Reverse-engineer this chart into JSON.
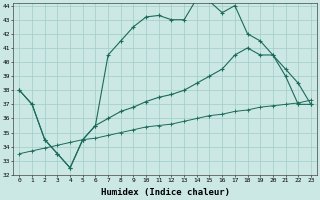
{
  "xlabel": "Humidex (Indice chaleur)",
  "bg_color": "#cce8e4",
  "line_color": "#1a6b5a",
  "grid_color": "#a0ccc8",
  "xmin": 0,
  "xmax": 23,
  "ymin": 32,
  "ymax": 44,
  "yticks": [
    32,
    33,
    34,
    35,
    36,
    37,
    38,
    39,
    40,
    41,
    42,
    43,
    44
  ],
  "line1_x": [
    0,
    1,
    2,
    3,
    4,
    5,
    6,
    7,
    8,
    9,
    10,
    11,
    12,
    13,
    14,
    15,
    16,
    17,
    18,
    19,
    20,
    21,
    22,
    23
  ],
  "line1_y": [
    38,
    37,
    34.5,
    33.5,
    32.5,
    34.5,
    35.5,
    40.5,
    41.5,
    42.5,
    43.2,
    43.3,
    43.0,
    43.0,
    44.5,
    44.3,
    43.5,
    44.0,
    42.0,
    41.5,
    40.5,
    39.5,
    38.5,
    37.0
  ],
  "line2_x": [
    0,
    1,
    2,
    3,
    4,
    5,
    6,
    7,
    8,
    9,
    10,
    11,
    12,
    13,
    14,
    15,
    16,
    17,
    18,
    19,
    20,
    21,
    22,
    23
  ],
  "line2_y": [
    38,
    37,
    34.5,
    33.5,
    32.5,
    34.5,
    35.5,
    36.0,
    36.5,
    36.8,
    37.2,
    37.5,
    37.7,
    38.0,
    38.5,
    39.0,
    39.5,
    40.5,
    41.0,
    40.5,
    40.5,
    39.0,
    37.0,
    37.0
  ],
  "line3_x": [
    0,
    1,
    2,
    3,
    4,
    5,
    6,
    7,
    8,
    9,
    10,
    11,
    12,
    13,
    14,
    15,
    16,
    17,
    18,
    19,
    20,
    21,
    22,
    23
  ],
  "line3_y": [
    33.5,
    33.7,
    33.9,
    34.1,
    34.3,
    34.5,
    34.6,
    34.8,
    35.0,
    35.2,
    35.4,
    35.5,
    35.6,
    35.8,
    36.0,
    36.2,
    36.3,
    36.5,
    36.6,
    36.8,
    36.9,
    37.0,
    37.1,
    37.3
  ]
}
